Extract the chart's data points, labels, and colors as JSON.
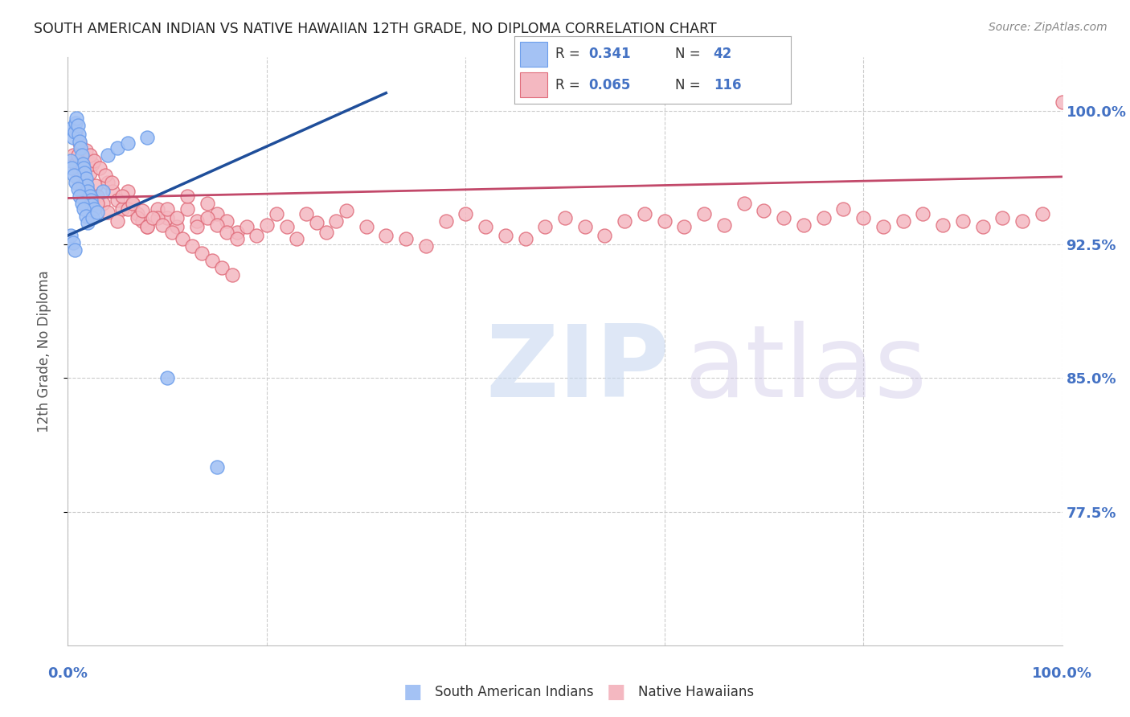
{
  "title": "SOUTH AMERICAN INDIAN VS NATIVE HAWAIIAN 12TH GRADE, NO DIPLOMA CORRELATION CHART",
  "source": "Source: ZipAtlas.com",
  "ylabel": "12th Grade, No Diploma",
  "xlim": [
    0.0,
    1.0
  ],
  "ylim": [
    0.7,
    1.03
  ],
  "y_tick_labels": [
    "77.5%",
    "85.0%",
    "92.5%",
    "100.0%"
  ],
  "y_tick_positions": [
    0.775,
    0.85,
    0.925,
    1.0
  ],
  "blue_R": "0.341",
  "blue_N": "42",
  "pink_R": "0.065",
  "pink_N": "116",
  "blue_color": "#a4c2f4",
  "pink_color": "#f4b8c1",
  "blue_edge_color": "#6d9eeb",
  "pink_edge_color": "#e06c7a",
  "blue_line_color": "#1f4e9a",
  "pink_line_color": "#c2496a",
  "legend_label_blue": "South American Indians",
  "legend_label_pink": "Native Hawaiians",
  "blue_scatter_x": [
    0.003,
    0.005,
    0.007,
    0.008,
    0.009,
    0.01,
    0.011,
    0.012,
    0.013,
    0.014,
    0.015,
    0.016,
    0.017,
    0.018,
    0.019,
    0.02,
    0.022,
    0.023,
    0.024,
    0.026,
    0.003,
    0.004,
    0.006,
    0.008,
    0.01,
    0.012,
    0.014,
    0.016,
    0.018,
    0.02,
    0.003,
    0.005,
    0.007,
    0.025,
    0.03,
    0.035,
    0.04,
    0.05,
    0.06,
    0.08,
    0.1,
    0.15
  ],
  "blue_scatter_y": [
    0.99,
    0.985,
    0.988,
    0.993,
    0.996,
    0.992,
    0.987,
    0.983,
    0.979,
    0.975,
    0.97,
    0.968,
    0.965,
    0.962,
    0.958,
    0.955,
    0.952,
    0.95,
    0.947,
    0.945,
    0.972,
    0.968,
    0.964,
    0.96,
    0.956,
    0.952,
    0.948,
    0.945,
    0.941,
    0.937,
    0.93,
    0.926,
    0.922,
    0.94,
    0.943,
    0.955,
    0.975,
    0.979,
    0.982,
    0.985,
    0.85,
    0.8
  ],
  "blue_line_x": [
    0.0,
    0.32
  ],
  "blue_line_y": [
    0.93,
    1.01
  ],
  "pink_scatter_x": [
    0.005,
    0.008,
    0.01,
    0.012,
    0.015,
    0.018,
    0.02,
    0.022,
    0.025,
    0.028,
    0.03,
    0.035,
    0.04,
    0.045,
    0.05,
    0.055,
    0.06,
    0.065,
    0.07,
    0.075,
    0.08,
    0.09,
    0.1,
    0.11,
    0.12,
    0.13,
    0.14,
    0.15,
    0.16,
    0.17,
    0.01,
    0.015,
    0.02,
    0.025,
    0.03,
    0.04,
    0.05,
    0.06,
    0.07,
    0.08,
    0.09,
    0.1,
    0.11,
    0.12,
    0.13,
    0.14,
    0.15,
    0.16,
    0.17,
    0.18,
    0.19,
    0.2,
    0.21,
    0.22,
    0.23,
    0.24,
    0.25,
    0.26,
    0.27,
    0.28,
    0.3,
    0.32,
    0.34,
    0.36,
    0.38,
    0.4,
    0.42,
    0.44,
    0.46,
    0.48,
    0.5,
    0.52,
    0.54,
    0.56,
    0.58,
    0.6,
    0.62,
    0.64,
    0.66,
    0.68,
    0.7,
    0.72,
    0.74,
    0.76,
    0.78,
    0.8,
    0.82,
    0.84,
    0.86,
    0.88,
    0.9,
    0.92,
    0.94,
    0.96,
    0.98,
    1.0,
    0.008,
    0.012,
    0.018,
    0.022,
    0.026,
    0.032,
    0.038,
    0.044,
    0.055,
    0.065,
    0.075,
    0.085,
    0.095,
    0.105,
    0.115,
    0.125,
    0.135,
    0.145,
    0.155,
    0.165
  ],
  "pink_scatter_y": [
    0.975,
    0.97,
    0.975,
    0.965,
    0.968,
    0.96,
    0.972,
    0.965,
    0.97,
    0.958,
    0.952,
    0.948,
    0.96,
    0.955,
    0.95,
    0.945,
    0.955,
    0.948,
    0.942,
    0.938,
    0.935,
    0.945,
    0.94,
    0.935,
    0.945,
    0.938,
    0.948,
    0.942,
    0.938,
    0.932,
    0.962,
    0.958,
    0.955,
    0.95,
    0.948,
    0.943,
    0.938,
    0.945,
    0.94,
    0.935,
    0.94,
    0.945,
    0.94,
    0.952,
    0.935,
    0.94,
    0.936,
    0.932,
    0.928,
    0.935,
    0.93,
    0.936,
    0.942,
    0.935,
    0.928,
    0.942,
    0.937,
    0.932,
    0.938,
    0.944,
    0.935,
    0.93,
    0.928,
    0.924,
    0.938,
    0.942,
    0.935,
    0.93,
    0.928,
    0.935,
    0.94,
    0.935,
    0.93,
    0.938,
    0.942,
    0.938,
    0.935,
    0.942,
    0.936,
    0.948,
    0.944,
    0.94,
    0.936,
    0.94,
    0.945,
    0.94,
    0.935,
    0.938,
    0.942,
    0.936,
    0.938,
    0.935,
    0.94,
    0.938,
    0.942,
    1.005,
    0.988,
    0.982,
    0.978,
    0.975,
    0.972,
    0.968,
    0.964,
    0.96,
    0.952,
    0.948,
    0.944,
    0.94,
    0.936,
    0.932,
    0.928,
    0.924,
    0.92,
    0.916,
    0.912,
    0.908
  ],
  "pink_line_x": [
    0.0,
    1.0
  ],
  "pink_line_y": [
    0.951,
    0.963
  ],
  "background_color": "#ffffff",
  "grid_color": "#cccccc",
  "title_color": "#222222",
  "axis_label_color": "#555555",
  "right_tick_color": "#4472c4"
}
